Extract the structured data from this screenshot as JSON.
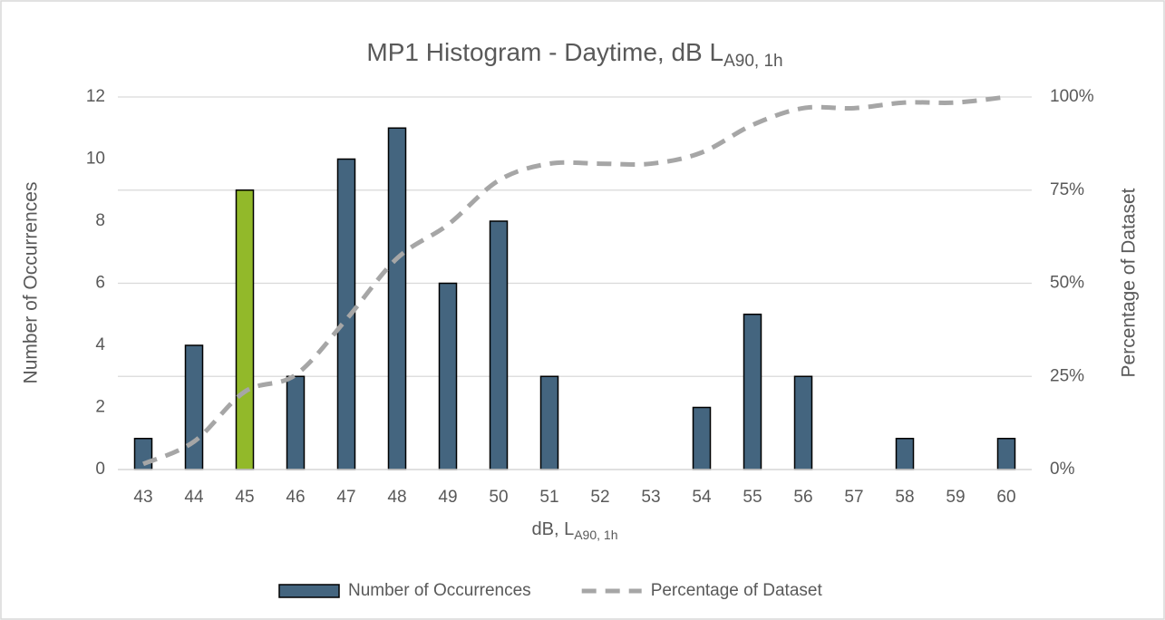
{
  "chart_data": {
    "type": "bar",
    "title": "MP1 Histogram - Daytime, dB L",
    "title_subscript": "A90, 1h",
    "x_label": "dB, L",
    "x_label_subscript": "A90, 1h",
    "y_label": "Number of Occurrences",
    "y2_label": "Percentage of Dataset",
    "categories": [
      "43",
      "44",
      "45",
      "46",
      "47",
      "48",
      "49",
      "50",
      "51",
      "52",
      "53",
      "54",
      "55",
      "56",
      "57",
      "58",
      "59",
      "60"
    ],
    "series": [
      {
        "name": "Number of Occurrences",
        "type": "bar",
        "color": "#44657f",
        "colors": [
          "#44657f",
          "#44657f",
          "#92b92a",
          "#44657f",
          "#44657f",
          "#44657f",
          "#44657f",
          "#44657f",
          "#44657f",
          "#44657f",
          "#44657f",
          "#44657f",
          "#44657f",
          "#44657f",
          "#44657f",
          "#44657f",
          "#44657f",
          "#44657f"
        ],
        "values": [
          1,
          4,
          9,
          3,
          10,
          11,
          6,
          8,
          3,
          0,
          0,
          2,
          5,
          3,
          0,
          1,
          0,
          1
        ]
      },
      {
        "name": "Percentage of Dataset",
        "type": "line",
        "axis": "y2",
        "color": "#a6a6a6",
        "values": [
          1.5,
          7.5,
          20.9,
          25.4,
          40.3,
          56.7,
          65.7,
          77.6,
          82.1,
          82.1,
          82.1,
          85.1,
          92.5,
          97.0,
          97.0,
          98.5,
          98.5,
          100
        ]
      }
    ],
    "ylim": [
      0,
      12
    ],
    "yticks": [
      0,
      2,
      4,
      6,
      8,
      10,
      12
    ],
    "y2lim": [
      0,
      100
    ],
    "y2ticks": [
      {
        "value": 0,
        "label": "0%"
      },
      {
        "value": 25,
        "label": "25%"
      },
      {
        "value": 50,
        "label": "50%"
      },
      {
        "value": 75,
        "label": "75%"
      },
      {
        "value": 100,
        "label": "100%"
      }
    ],
    "grid": true,
    "legend": "bottom"
  }
}
